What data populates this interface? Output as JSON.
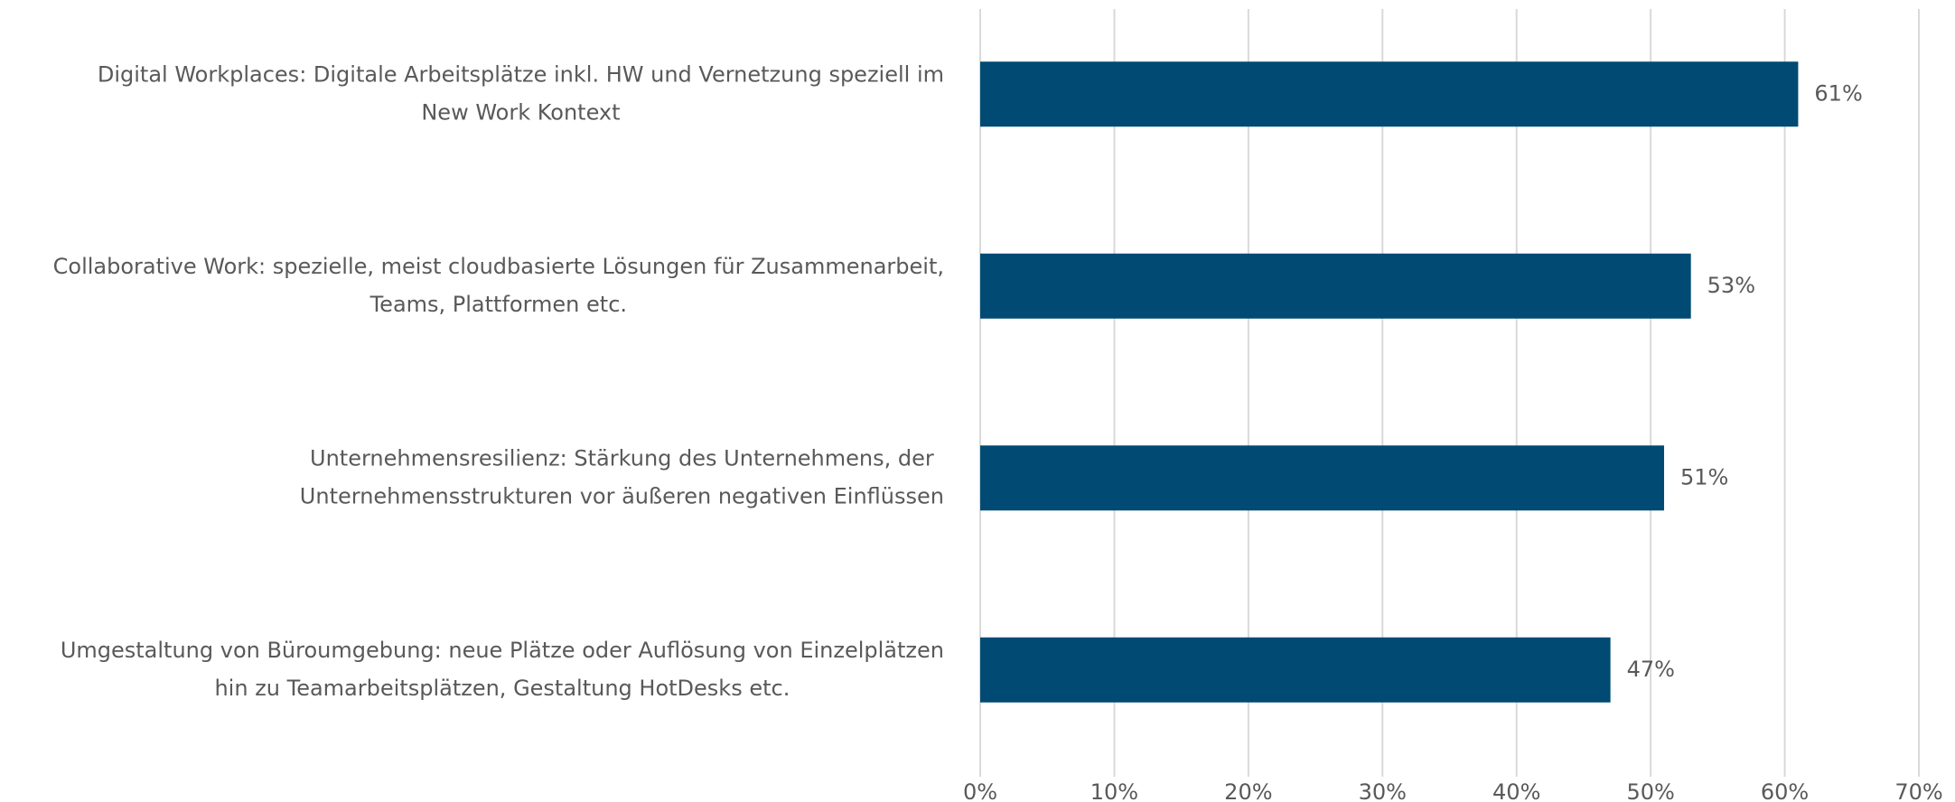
{
  "chart_data": {
    "type": "bar",
    "orientation": "horizontal",
    "categories": [
      [
        "Digital Workplaces: Digitale Arbeitsplätze inkl. HW und Vernetzung speziell im",
        "New Work Kontext"
      ],
      [
        "Collaborative Work: spezielle, meist cloudbasierte Lösungen für Zusammenarbeit,",
        "Teams, Plattformen etc."
      ],
      [
        "Unternehmensresilienz: Stärkung des Unternehmens, der",
        "Unternehmensstrukturen vor äußeren negativen Einflüssen"
      ],
      [
        "Umgestaltung von Büroumgebung: neue Plätze oder Auflösung von Einzelplätzen",
        "hin zu Teamarbeitsplätzen, Gestaltung HotDesks etc."
      ]
    ],
    "values": [
      61,
      53,
      51,
      47
    ],
    "value_labels": [
      "61%",
      "53%",
      "51%",
      "47%"
    ],
    "color": "#004a73",
    "xlim": [
      0,
      70
    ],
    "xticks": [
      {
        "value": 0,
        "label": "0%"
      },
      {
        "value": 10,
        "label": "10%"
      },
      {
        "value": 20,
        "label": "20%"
      },
      {
        "value": 30,
        "label": "30%"
      },
      {
        "value": 40,
        "label": "40%"
      },
      {
        "value": 50,
        "label": "50%"
      },
      {
        "value": 60,
        "label": "60%"
      },
      {
        "value": 70,
        "label": "70%"
      }
    ],
    "grid": true
  }
}
